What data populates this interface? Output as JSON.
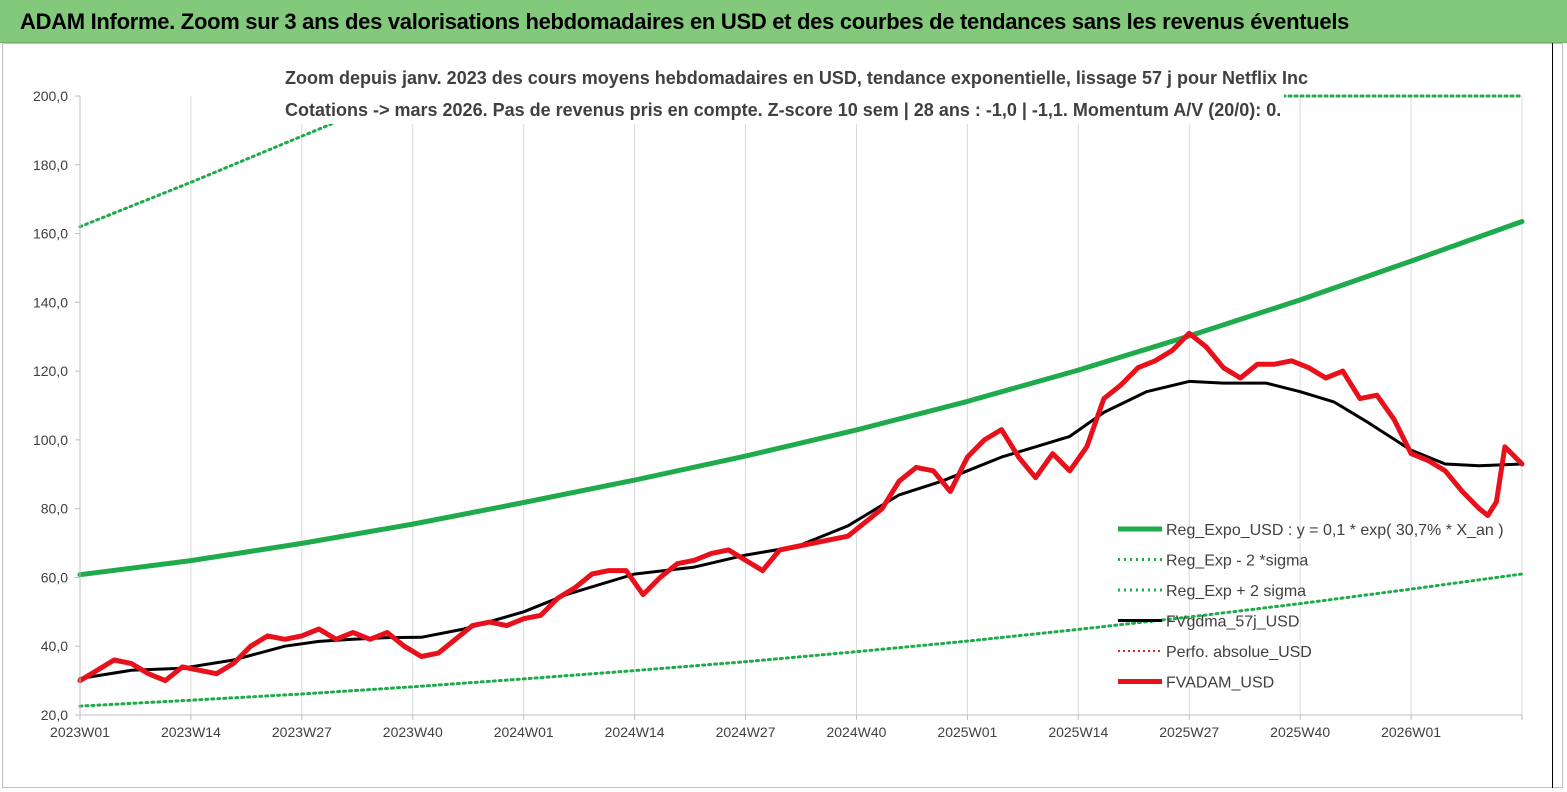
{
  "header": {
    "title": "ADAM Informe. Zoom sur 3 ans des valorisations hebdomadaires en USD et des courbes de tendances sans les revenus éventuels"
  },
  "chart_data": {
    "type": "line",
    "subtitle_line1": "Zoom depuis janv. 2023 des cours moyens hebdomadaires en USD, tendance exponentielle, lissage 57 j pour Netflix Inc",
    "subtitle_line2": "Cotations -> mars 2026. Pas de revenus pris en compte. Z-score 10 sem | 28 ans : -1,0 | -1,1. Momentum A/V (20/0): 0.",
    "ylim": [
      20,
      200
    ],
    "yticks": [
      "20,0",
      "40,0",
      "60,0",
      "80,0",
      "100,0",
      "120,0",
      "140,0",
      "160,0",
      "180,0",
      "200,0"
    ],
    "xticks": [
      "2023W01",
      "2023W14",
      "2023W27",
      "2023W40",
      "2024W01",
      "2024W14",
      "2024W27",
      "2024W40",
      "2025W01",
      "2025W14",
      "2025W27",
      "2025W40",
      "2026W01"
    ],
    "xlim": [
      0,
      169
    ],
    "grid": "vertical",
    "legend_position": "bottom-right",
    "colors": {
      "trend": "#1faa4b",
      "band": "#1faa4b",
      "smooth": "#000000",
      "perf": "#d62728",
      "price": "#e8101a"
    },
    "series": [
      {
        "name": "Reg_Expo_USD : y = 0,1 * exp( 30,7% *  X_an )",
        "style": "thick",
        "x": [
          0,
          13,
          26,
          39,
          52,
          65,
          78,
          91,
          104,
          117,
          130,
          143,
          156,
          169
        ],
        "values": [
          60.8,
          64.9,
          69.9,
          75.5,
          81.8,
          88.3,
          95.3,
          102.9,
          111.2,
          120.3,
          130.2,
          140.7,
          152.0,
          163.5
        ]
      },
      {
        "name": "Reg_Exp - 2 *sigma",
        "style": "dotted",
        "x": [
          0,
          13,
          26,
          39,
          52,
          65,
          78,
          91,
          104,
          117,
          130,
          143,
          156,
          169
        ],
        "values": [
          22.6,
          24.3,
          26.1,
          28.2,
          30.5,
          32.9,
          35.5,
          38.4,
          41.5,
          44.9,
          48.5,
          52.4,
          56.6,
          61.0
        ]
      },
      {
        "name": "Reg_Exp + 2 sigma",
        "style": "dotted",
        "x": [
          0,
          13,
          26,
          30,
          132,
          169
        ],
        "values": [
          162.0,
          174.9,
          188.3,
          192.4,
          200,
          200
        ]
      },
      {
        "name": "FVgdma_57j_USD",
        "style": "medium",
        "x": [
          0,
          6,
          12,
          18,
          24,
          28,
          32,
          36,
          40,
          45,
          52,
          57,
          65,
          72,
          78,
          84,
          90,
          96,
          101,
          104,
          108,
          112,
          116,
          120,
          125,
          130,
          134,
          139,
          143,
          147,
          151,
          156,
          160,
          164,
          169
        ],
        "values": [
          30.6,
          33.0,
          33.6,
          36.0,
          40.0,
          41.4,
          42.0,
          42.5,
          42.6,
          45.0,
          50.0,
          55.0,
          61.0,
          63.0,
          66.5,
          69.0,
          75.0,
          84.0,
          88.0,
          91.0,
          95.0,
          98.0,
          101.0,
          108.0,
          114.0,
          117.0,
          116.5,
          116.5,
          114.0,
          111.0,
          105.0,
          97.0,
          93.0,
          92.5,
          93.0
        ]
      },
      {
        "name": "Perfo. absolue_USD",
        "style": "dotted-thin",
        "x": [],
        "values": []
      },
      {
        "name": "FVADAM_USD",
        "style": "thick",
        "x": [
          0,
          2,
          4,
          6,
          8,
          10,
          12,
          14,
          16,
          18,
          20,
          22,
          24,
          26,
          28,
          30,
          32,
          34,
          36,
          38,
          40,
          42,
          44,
          46,
          48,
          50,
          52,
          54,
          56,
          58,
          60,
          62,
          64,
          66,
          68,
          70,
          72,
          74,
          76,
          78,
          80,
          82,
          84,
          86,
          88,
          90,
          92,
          94,
          96,
          98,
          100,
          102,
          104,
          106,
          108,
          110,
          112,
          114,
          116,
          118,
          120,
          122,
          124,
          126,
          128,
          130,
          132,
          134,
          136,
          138,
          140,
          142,
          144,
          146,
          148,
          150,
          152,
          154,
          156,
          158,
          160,
          162,
          164,
          165,
          166,
          167,
          169
        ],
        "values": [
          30,
          33,
          36,
          35,
          32,
          30,
          34,
          33,
          32,
          35,
          40,
          43,
          42,
          43,
          45,
          42,
          44,
          42,
          44,
          40,
          37,
          38,
          42,
          46,
          47,
          46,
          48,
          49,
          54,
          57,
          61,
          62,
          62,
          55,
          60,
          64,
          65,
          67,
          68,
          65,
          62,
          68,
          69,
          70,
          71,
          72,
          76,
          80,
          88,
          92,
          91,
          85,
          95,
          100,
          103,
          95,
          89,
          96,
          91,
          98,
          112,
          116,
          121,
          123,
          126,
          131,
          127,
          121,
          118,
          122,
          122,
          123,
          121,
          118,
          120,
          112,
          113,
          106,
          96,
          94,
          91,
          85,
          80,
          78,
          82,
          98,
          93
        ]
      }
    ]
  }
}
